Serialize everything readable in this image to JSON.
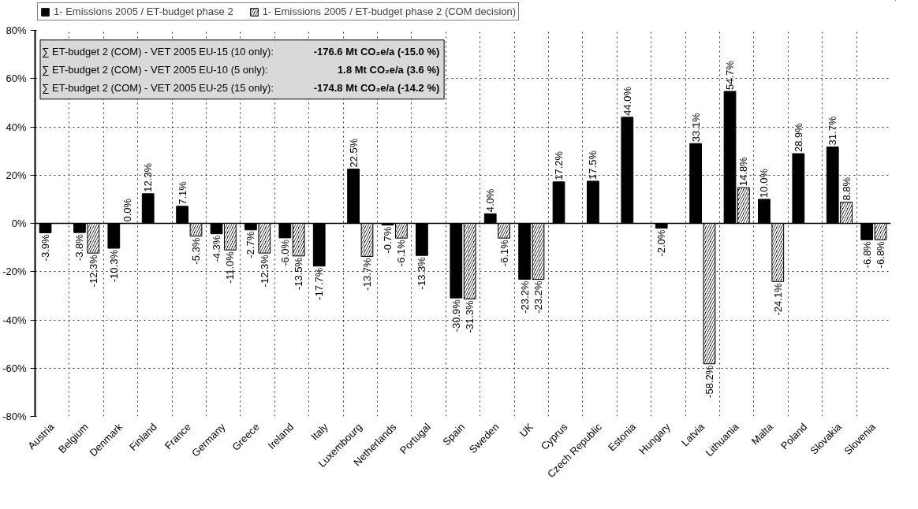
{
  "chart_data": {
    "type": "bar",
    "categories": [
      "Austria",
      "Belgium",
      "Denmark",
      "Finland",
      "France",
      "Germany",
      "Greece",
      "Ireland",
      "Italy",
      "Luxembourg",
      "Netherlands",
      "Portugal",
      "Spain",
      "Sweden",
      "UK",
      "Cyprus",
      "Czech Republic",
      "Estonia",
      "Hungary",
      "Latvia",
      "Lithuania",
      "Malta",
      "Poland",
      "Slovakia",
      "Slovenia"
    ],
    "series": [
      {
        "name": "1- Emissions 2005 / ET-budget phase 2",
        "color": "#000000",
        "values": [
          -3.9,
          -3.8,
          -10.3,
          12.3,
          7.1,
          -4.3,
          -2.7,
          -6.0,
          -17.7,
          22.5,
          -0.7,
          -13.3,
          -30.9,
          4.0,
          -23.2,
          17.2,
          17.5,
          44.0,
          -2.0,
          33.1,
          54.7,
          10.0,
          28.9,
          31.7,
          -6.8
        ],
        "value_labels": [
          "-3.9%",
          "-3.8%",
          "-10.3%",
          "12.3%",
          "7.1%",
          "-4.3%",
          "-2.7%",
          "-6.0%",
          "-17.7%",
          "22.5%",
          "-0.7%",
          "-13.3%",
          "-30.9%",
          "4.0%",
          "-23.2%",
          "17.2%",
          "17.5%",
          "44.0%",
          "-2.0%",
          "33.1%",
          "54.7%",
          "10.0%",
          "28.9%",
          "31.7%",
          "-6.8%"
        ]
      },
      {
        "name": "1- Emissions 2005 / ET-budget phase 2 (COM decision)",
        "color": "#000000",
        "values": [
          null,
          -12.3,
          0.0,
          null,
          -5.3,
          -11.0,
          -12.3,
          -13.5,
          null,
          -13.7,
          -6.1,
          null,
          -31.3,
          -6.1,
          -23.2,
          null,
          null,
          null,
          null,
          -58.2,
          14.8,
          -24.1,
          null,
          8.8,
          -6.8
        ],
        "value_labels": [
          null,
          "-12.3%",
          "0.0%",
          null,
          "-5.3%",
          "-11.0%",
          "-12.3%",
          "-13.5%",
          null,
          "-13.7%",
          "-6.1%",
          null,
          "-31.3%",
          "-6.1%",
          "-23.2%",
          null,
          null,
          null,
          null,
          "-58.2%",
          "14.8%",
          "-24.1%",
          null,
          "8.8%",
          "-6.8%"
        ]
      }
    ],
    "ylim": [
      -80,
      80
    ],
    "yticks": [
      {
        "value": -80,
        "label": "-80%"
      },
      {
        "value": -60,
        "label": "-60%"
      },
      {
        "value": -40,
        "label": "-40%"
      },
      {
        "value": -20,
        "label": "-20%"
      },
      {
        "value": 0,
        "label": "0%"
      },
      {
        "value": 20,
        "label": "20%"
      },
      {
        "value": 40,
        "label": "40%"
      },
      {
        "value": 60,
        "label": "60%"
      },
      {
        "value": 80,
        "label": "80%"
      }
    ],
    "data_labels": true,
    "grid": true,
    "legend": "top",
    "annotations": [
      "∑ ET-budget 2 (COM) - VET 2005 EU-15 (10 only): -176.6 Mt CO₂e/a  (-15.0 %)",
      "∑ ET-budget 2 (COM) - VET 2005 EU-10 (5 only): 1.8 Mt CO₂e/a  (3.6 %)",
      "∑ ET-budget 2 (COM) - VET 2005 EU-25 (15 only): -174.8 Mt CO₂e/a  (-14.2 %)"
    ]
  }
}
